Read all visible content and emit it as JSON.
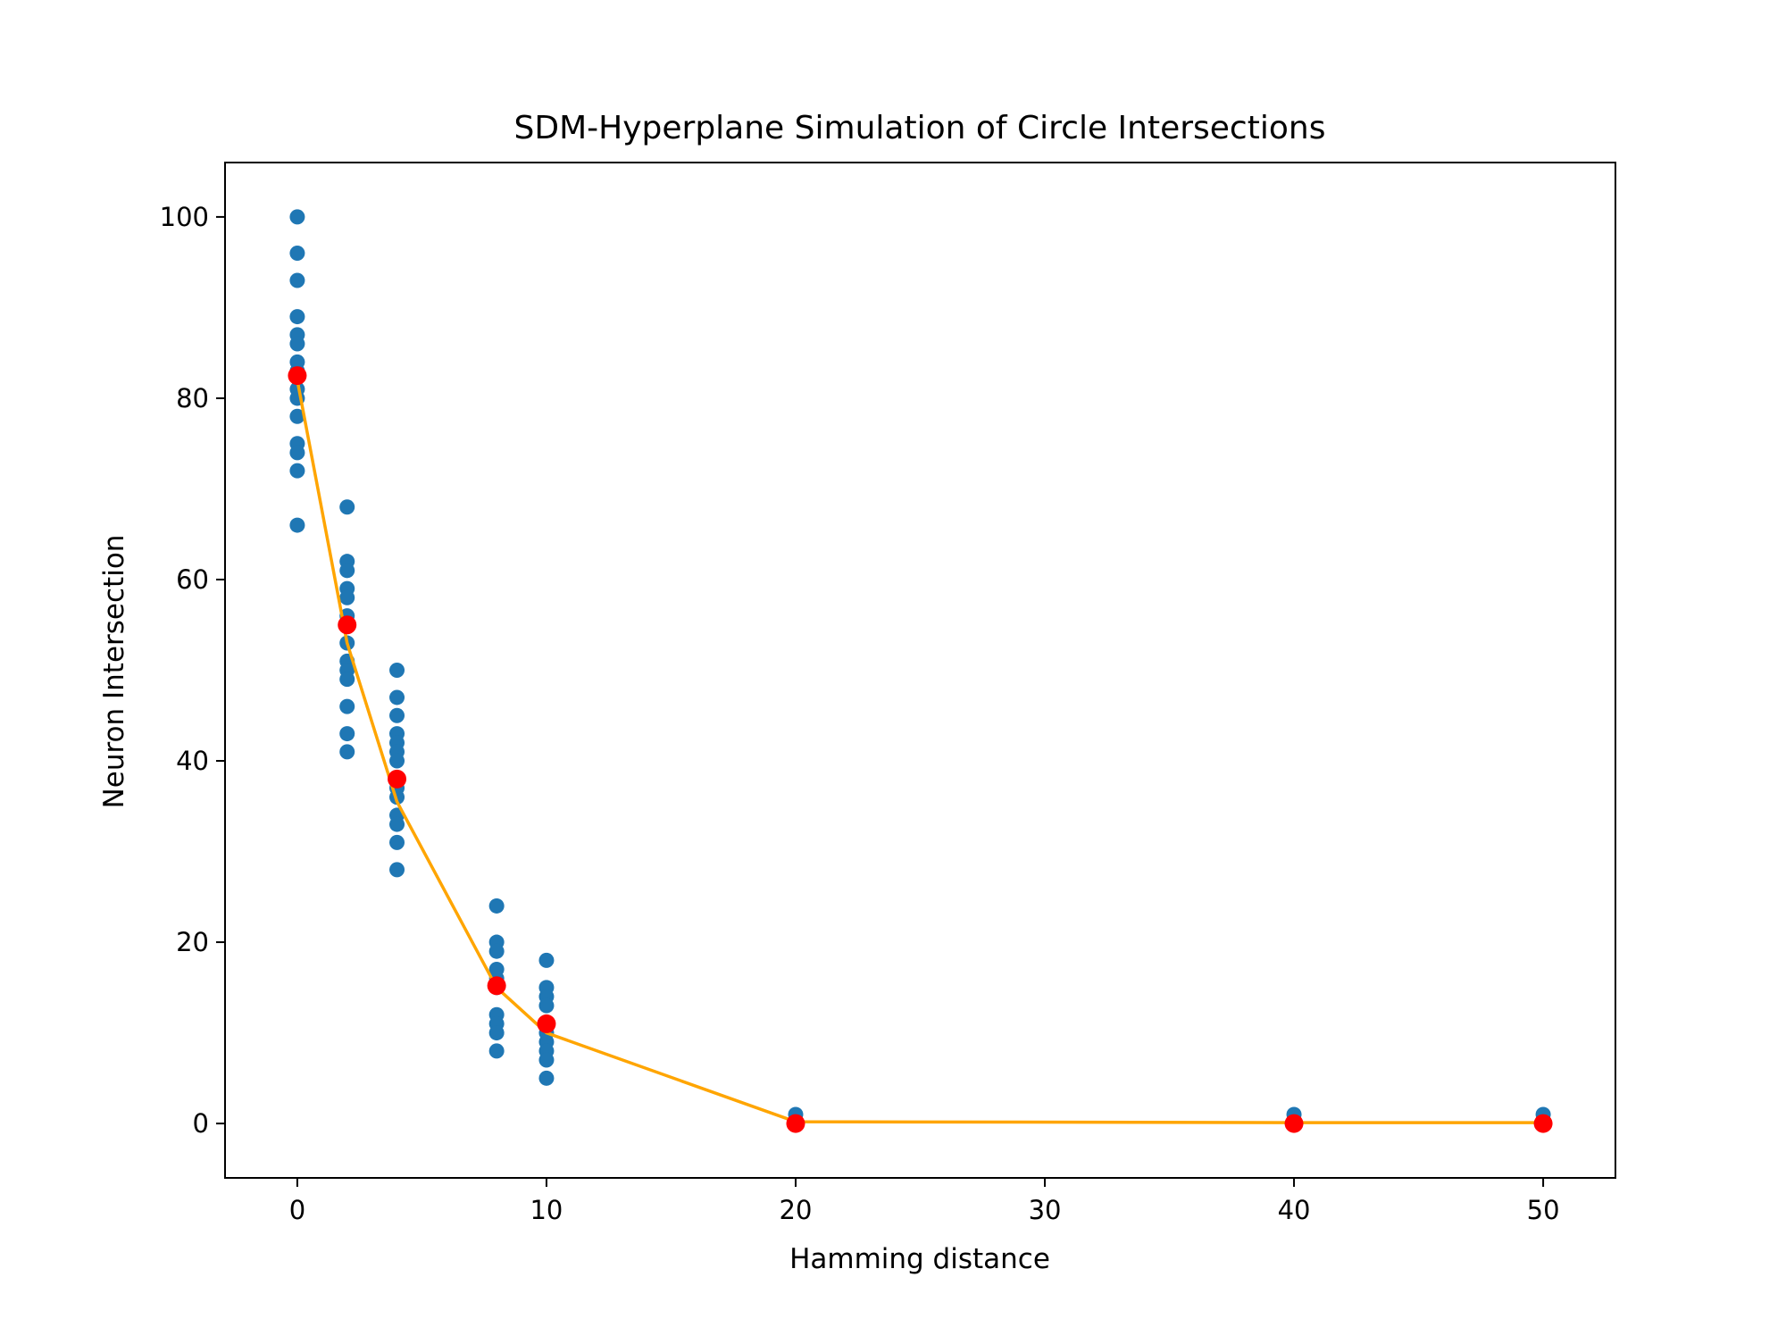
{
  "chart_data": {
    "type": "scatter",
    "title": "SDM-Hyperplane Simulation of Circle Intersections",
    "xlabel": "Hamming distance",
    "ylabel": "Neuron Intersection",
    "xlim": [
      -2.9,
      52.9
    ],
    "ylim": [
      -6,
      106
    ],
    "xticks": [
      0,
      10,
      20,
      30,
      40,
      50
    ],
    "yticks": [
      0,
      20,
      40,
      60,
      80,
      100
    ],
    "grid": false,
    "legend": "none",
    "series": [
      {
        "kind": "scatter",
        "color": "#1f77b4",
        "points": [
          [
            0,
            100
          ],
          [
            0,
            96
          ],
          [
            0,
            93
          ],
          [
            0,
            89
          ],
          [
            0,
            87
          ],
          [
            0,
            86
          ],
          [
            0,
            84
          ],
          [
            0,
            83
          ],
          [
            0,
            81
          ],
          [
            0,
            80
          ],
          [
            0,
            78
          ],
          [
            0,
            75
          ],
          [
            0,
            74
          ],
          [
            0,
            72
          ],
          [
            0,
            66
          ],
          [
            2,
            68
          ],
          [
            2,
            62
          ],
          [
            2,
            61
          ],
          [
            2,
            59
          ],
          [
            2,
            58
          ],
          [
            2,
            56
          ],
          [
            2,
            55
          ],
          [
            2,
            53
          ],
          [
            2,
            51
          ],
          [
            2,
            50
          ],
          [
            2,
            49
          ],
          [
            2,
            46
          ],
          [
            2,
            43
          ],
          [
            2,
            41
          ],
          [
            4,
            50
          ],
          [
            4,
            47
          ],
          [
            4,
            45
          ],
          [
            4,
            43
          ],
          [
            4,
            42
          ],
          [
            4,
            41
          ],
          [
            4,
            40
          ],
          [
            4,
            38
          ],
          [
            4,
            37
          ],
          [
            4,
            36
          ],
          [
            4,
            34
          ],
          [
            4,
            33
          ],
          [
            4,
            31
          ],
          [
            4,
            28
          ],
          [
            8,
            24
          ],
          [
            8,
            20
          ],
          [
            8,
            19
          ],
          [
            8,
            17
          ],
          [
            8,
            16
          ],
          [
            8,
            15
          ],
          [
            8,
            12
          ],
          [
            8,
            11
          ],
          [
            8,
            10
          ],
          [
            8,
            8
          ],
          [
            10,
            18
          ],
          [
            10,
            15
          ],
          [
            10,
            14
          ],
          [
            10,
            13
          ],
          [
            10,
            11
          ],
          [
            10,
            10
          ],
          [
            10,
            9
          ],
          [
            10,
            8
          ],
          [
            10,
            7
          ],
          [
            10,
            5
          ],
          [
            20,
            1
          ],
          [
            20,
            0
          ],
          [
            40,
            1
          ],
          [
            40,
            0
          ],
          [
            50,
            1
          ],
          [
            50,
            0
          ]
        ]
      },
      {
        "kind": "line",
        "color": "#ffa500",
        "points": [
          [
            0,
            82
          ],
          [
            2,
            53
          ],
          [
            4,
            35.5
          ],
          [
            8,
            15
          ],
          [
            10,
            10
          ],
          [
            20,
            0.2
          ],
          [
            40,
            0.1
          ],
          [
            50,
            0.1
          ]
        ]
      },
      {
        "kind": "scatter",
        "color": "#ff0000",
        "points": [
          [
            0,
            82.5
          ],
          [
            2,
            55
          ],
          [
            4,
            38
          ],
          [
            8,
            15.2
          ],
          [
            10,
            11
          ],
          [
            20,
            0
          ],
          [
            40,
            0
          ],
          [
            50,
            0
          ]
        ]
      }
    ]
  }
}
